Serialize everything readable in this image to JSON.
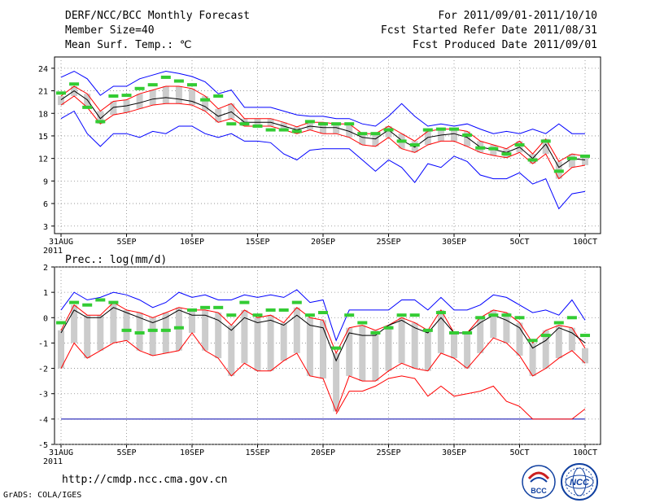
{
  "header": {
    "title": "DERF/NCC/BCC Monthly Forecast",
    "member_size": "Member Size=40",
    "variable": "Mean Surf. Temp.: ℃",
    "period": "For 2011/09/01-2011/10/10",
    "started": "Fcst Started Refer Date 2011/08/31",
    "produced": "Fcst Produced Date 2011/09/01"
  },
  "footer": {
    "url": "http://cmdp.ncc.cma.gov.cn",
    "credit": "GrADS: COLA/IGES"
  },
  "logos": {
    "bcc": "BCC",
    "ncc": "NCC"
  },
  "colors": {
    "mean": "#000000",
    "spread": "#ff0000",
    "extreme": "#0000ff",
    "observed": "#33cc33",
    "box": "#cccccc"
  },
  "chart_data": [
    {
      "type": "line",
      "name": "temperature",
      "title": "Mean Surf. Temp.: ℃",
      "ylim": [
        2,
        25.5
      ],
      "yticks": [
        3,
        6,
        9,
        12,
        15,
        18,
        21,
        24
      ],
      "xlim": [
        0,
        40
      ],
      "xticks": [
        {
          "day": 0,
          "label": "31AUG"
        },
        {
          "day": 5,
          "label": "5SEP"
        },
        {
          "day": 10,
          "label": "10SEP"
        },
        {
          "day": 15,
          "label": "15SEP"
        },
        {
          "day": 20,
          "label": "20SEP"
        },
        {
          "day": 25,
          "label": "25SEP"
        },
        {
          "day": 30,
          "label": "30SEP"
        },
        {
          "day": 35,
          "label": "5OCT"
        },
        {
          "day": 40,
          "label": "10OCT"
        }
      ],
      "year_label": "2011",
      "series": [
        {
          "name": "max",
          "values": [
            22.8,
            23.6,
            22.6,
            20.4,
            21.6,
            21.6,
            22.6,
            23.1,
            23.6,
            23.3,
            22.9,
            22.2,
            20.6,
            21.1,
            18.8,
            18.8,
            18.8,
            18.3,
            17.8,
            17.6,
            17.6,
            17.3,
            17.3,
            16.6,
            16.3,
            17.6,
            19.3,
            17.6,
            16.3,
            16.6,
            16.3,
            16.6,
            15.9,
            15.3,
            15.6,
            15.3,
            15.9,
            15.3,
            16.6,
            15.3,
            15.3
          ]
        },
        {
          "name": "upper",
          "values": [
            20.3,
            21.6,
            20.6,
            18.3,
            19.6,
            19.8,
            20.6,
            21.1,
            21.6,
            21.6,
            21.3,
            20.3,
            18.6,
            19.3,
            17.3,
            17.3,
            17.3,
            16.8,
            16.2,
            16.8,
            16.8,
            16.6,
            16.6,
            15.3,
            15.3,
            16.3,
            15.3,
            14.3,
            15.6,
            15.9,
            15.9,
            15.6,
            14.3,
            13.8,
            13.3,
            14.3,
            12.6,
            14.6,
            11.6,
            12.6,
            12.3
          ]
        },
        {
          "name": "mean",
          "values": [
            19.8,
            21.0,
            19.8,
            17.3,
            18.8,
            19.0,
            19.4,
            19.9,
            20.1,
            19.9,
            19.6,
            18.9,
            17.6,
            18.2,
            16.8,
            16.8,
            16.8,
            16.3,
            15.8,
            16.3,
            16.1,
            16.1,
            15.6,
            14.8,
            14.6,
            15.8,
            14.4,
            13.5,
            14.8,
            15.1,
            15.3,
            14.8,
            13.5,
            13.2,
            12.8,
            13.5,
            12.0,
            13.9,
            10.8,
            12.0,
            11.8
          ]
        },
        {
          "name": "lower",
          "values": [
            19.1,
            20.3,
            18.8,
            16.6,
            17.8,
            18.1,
            18.6,
            19.1,
            19.3,
            19.3,
            19.1,
            18.3,
            16.8,
            17.3,
            16.3,
            16.3,
            16.3,
            15.8,
            15.3,
            15.8,
            15.3,
            15.3,
            14.8,
            13.8,
            13.6,
            14.8,
            13.3,
            12.8,
            13.8,
            14.3,
            14.3,
            13.6,
            12.8,
            12.4,
            12.1,
            12.8,
            11.3,
            12.6,
            9.3,
            10.8,
            11.1
          ]
        },
        {
          "name": "min",
          "values": [
            17.3,
            18.3,
            15.3,
            13.6,
            15.3,
            15.3,
            14.8,
            15.6,
            15.3,
            16.3,
            16.3,
            15.3,
            14.8,
            15.3,
            14.3,
            14.3,
            14.1,
            12.6,
            11.8,
            13.1,
            13.3,
            13.3,
            13.3,
            11.8,
            10.3,
            11.8,
            10.8,
            8.8,
            11.3,
            10.8,
            12.3,
            11.6,
            9.8,
            9.3,
            9.3,
            10.1,
            8.6,
            9.3,
            5.3,
            7.3,
            7.6
          ]
        },
        {
          "name": "observed",
          "values": [
            20.7,
            21.9,
            18.8,
            16.9,
            20.3,
            20.4,
            21.3,
            21.8,
            22.8,
            22.3,
            21.8,
            19.8,
            20.3,
            16.6,
            16.6,
            16.3,
            15.8,
            15.8,
            15.6,
            16.9,
            16.6,
            16.6,
            16.6,
            15.3,
            15.3,
            15.8,
            14.3,
            13.8,
            15.8,
            15.9,
            15.9,
            15.1,
            13.4,
            13.3,
            12.6,
            13.8,
            11.8,
            14.3,
            10.3,
            12.0,
            12.3
          ]
        }
      ]
    },
    {
      "type": "line",
      "name": "precipitation",
      "title": "Prec.: log(mm/d)",
      "ylim": [
        -5,
        2
      ],
      "yticks": [
        -5,
        -4,
        -3,
        -2,
        -1,
        0,
        1,
        2
      ],
      "xlim": [
        0,
        40
      ],
      "xticks": [
        {
          "day": 0,
          "label": "31AUG"
        },
        {
          "day": 5,
          "label": "5SEP"
        },
        {
          "day": 10,
          "label": "10SEP"
        },
        {
          "day": 15,
          "label": "15SEP"
        },
        {
          "day": 20,
          "label": "20SEP"
        },
        {
          "day": 25,
          "label": "25SEP"
        },
        {
          "day": 30,
          "label": "30SEP"
        },
        {
          "day": 35,
          "label": "5OCT"
        },
        {
          "day": 40,
          "label": "10OCT"
        }
      ],
      "year_label": "2011",
      "series": [
        {
          "name": "max",
          "values": [
            0.3,
            1.0,
            0.7,
            0.8,
            1.0,
            0.9,
            0.7,
            0.4,
            0.6,
            1.0,
            0.8,
            0.9,
            0.7,
            0.7,
            0.9,
            0.8,
            0.9,
            0.8,
            1.1,
            0.6,
            0.7,
            -0.9,
            0.3,
            0.3,
            0.3,
            0.3,
            0.7,
            0.7,
            0.3,
            0.8,
            0.3,
            0.3,
            0.5,
            0.9,
            0.8,
            0.5,
            0.2,
            0.3,
            0.1,
            0.7,
            -0.1
          ]
        },
        {
          "name": "upper",
          "values": [
            -0.5,
            0.5,
            0.1,
            0.1,
            0.6,
            0.3,
            0.2,
            0.0,
            0.2,
            0.4,
            0.3,
            0.3,
            0.2,
            -0.3,
            0.3,
            0.0,
            0.1,
            -0.2,
            0.4,
            0.0,
            -0.1,
            -1.4,
            -0.4,
            -0.3,
            -0.5,
            -0.3,
            0.0,
            -0.2,
            -0.5,
            0.3,
            -0.6,
            -0.6,
            0.0,
            0.3,
            0.2,
            -0.2,
            -1.0,
            -0.5,
            -0.3,
            -0.4,
            -1.2
          ]
        },
        {
          "name": "mean",
          "values": [
            -0.6,
            0.3,
            0.0,
            0.0,
            0.4,
            0.2,
            0.0,
            -0.2,
            0.0,
            0.3,
            0.1,
            0.1,
            -0.1,
            -0.5,
            0.0,
            -0.2,
            -0.1,
            -0.3,
            0.1,
            -0.3,
            -0.4,
            -1.7,
            -0.6,
            -0.7,
            -0.7,
            -0.3,
            -0.1,
            -0.4,
            -0.6,
            0.0,
            -0.6,
            -0.6,
            -0.2,
            0.1,
            -0.1,
            -0.4,
            -1.2,
            -0.9,
            -0.4,
            -0.6,
            -1.0
          ]
        },
        {
          "name": "lower",
          "values": [
            -2.0,
            -1.0,
            -1.6,
            -1.3,
            -1.0,
            -0.9,
            -1.3,
            -1.5,
            -1.4,
            -1.3,
            -0.6,
            -1.3,
            -1.6,
            -2.3,
            -1.8,
            -2.1,
            -2.1,
            -1.7,
            -1.4,
            -2.3,
            -2.4,
            -3.7,
            -2.3,
            -2.5,
            -2.5,
            -2.1,
            -1.8,
            -2.0,
            -2.1,
            -1.4,
            -1.6,
            -2.0,
            -1.4,
            -0.8,
            -1.0,
            -1.5,
            -2.3,
            -2.0,
            -1.6,
            -1.3,
            -1.8
          ]
        },
        {
          "name": "min",
          "values": [
            -4,
            -4,
            -4,
            -4,
            -4,
            -4,
            -4,
            -4,
            -4,
            -4,
            -4,
            -4,
            -4,
            -4,
            -4,
            -4,
            -4,
            -4,
            -4,
            -4,
            -4,
            -4,
            -4,
            -4,
            -4,
            -4,
            -4,
            -4,
            -4,
            -4,
            -4,
            -4,
            -4,
            -4,
            -4,
            -4,
            -4,
            -4,
            -4,
            -4,
            -4
          ]
        },
        {
          "name": "lower_extreme",
          "values": [
            null,
            null,
            null,
            null,
            null,
            null,
            null,
            null,
            null,
            null,
            null,
            null,
            null,
            null,
            null,
            null,
            null,
            null,
            null,
            null,
            null,
            -3.8,
            -2.9,
            -2.9,
            -2.7,
            -2.4,
            -2.3,
            -2.4,
            -3.1,
            -2.7,
            -3.1,
            -3.0,
            -2.9,
            -2.7,
            -3.3,
            -3.5,
            -4.0,
            -4.0,
            -4.0,
            -4.0,
            -3.6
          ]
        },
        {
          "name": "observed",
          "values": [
            -0.2,
            0.6,
            0.5,
            0.7,
            0.6,
            -0.5,
            -0.6,
            -0.5,
            -0.5,
            -0.4,
            0.3,
            0.4,
            0.4,
            0.1,
            0.6,
            0.1,
            0.3,
            0.3,
            0.6,
            0.1,
            0.2,
            -1.2,
            0.1,
            -0.2,
            -0.6,
            -0.4,
            0.1,
            0.1,
            -0.5,
            0.2,
            -0.6,
            -0.6,
            0.0,
            0.1,
            0.1,
            0.0,
            -0.9,
            -0.7,
            -0.2,
            0.0,
            -0.7
          ]
        }
      ]
    }
  ]
}
